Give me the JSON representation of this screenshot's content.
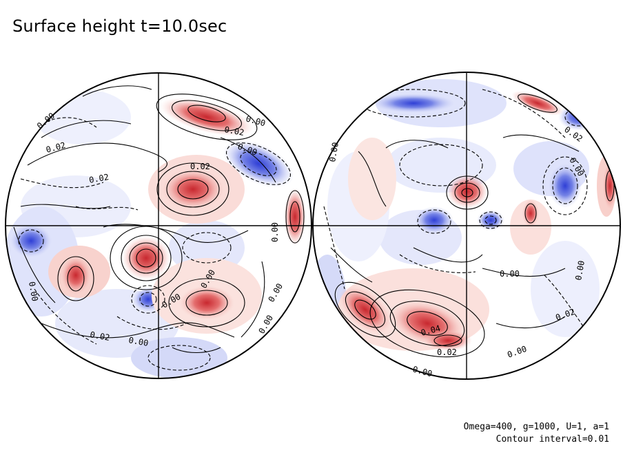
{
  "title": "Surface height t=10.0sec",
  "footer": {
    "params": "Omega=400, g=1000, U=1, a=1",
    "interval": "Contour interval=0.01"
  },
  "colors": {
    "positive": "#d9434a",
    "positive_light": "#f4b4b0",
    "negative": "#3a4bd8",
    "negative_light": "#b9c1f3",
    "line": "#000000"
  },
  "contour_labels": {
    "left": [
      "0.02",
      "0.02",
      "0.00",
      "0.02",
      "0.00",
      "0.02",
      "0.00",
      "0.00",
      "0.00",
      "0.00",
      "0.00",
      "0.02",
      "0.00",
      "0.00",
      "0.00"
    ],
    "right": [
      "0.00",
      "0.02",
      "0.00",
      "0.00",
      "0.02",
      "0.00",
      "0.04",
      "0.02",
      "0.00",
      "0.00"
    ]
  }
}
